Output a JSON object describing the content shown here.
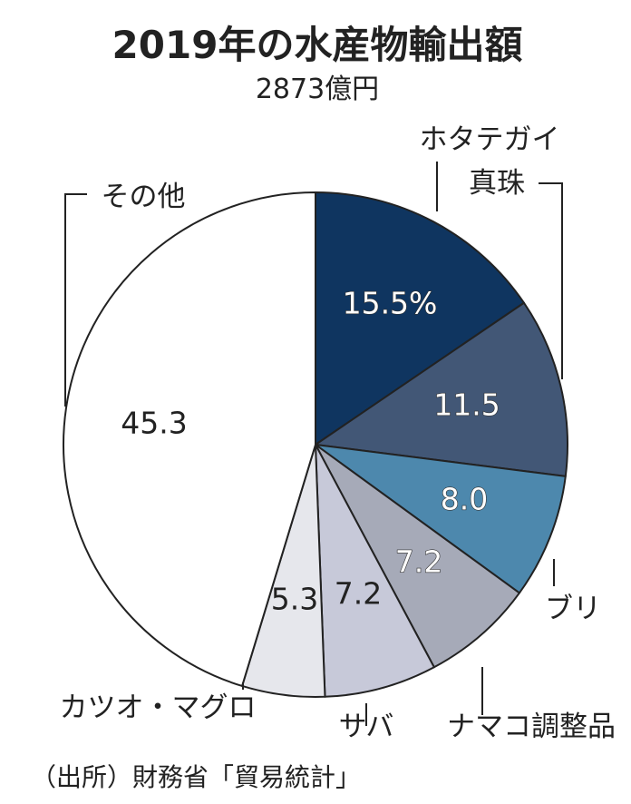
{
  "chart_data": {
    "type": "pie",
    "title": "2019年の水産物輸出額",
    "subtitle": "2873億円",
    "slices": [
      {
        "label": "ホタテガイ",
        "value": 15.5,
        "value_label": "15.5%",
        "color": "#0f3560",
        "text_color": "#ffffff"
      },
      {
        "label": "真珠",
        "value": 11.5,
        "value_label": "11.5",
        "color": "#425776",
        "text_color": "#ffffff"
      },
      {
        "label": "ブリ",
        "value": 8.0,
        "value_label": "8.0",
        "color": "#4d88ad",
        "text_color": "#ffffff"
      },
      {
        "label": "ナマコ調整品",
        "value": 7.2,
        "value_label": "7.2",
        "color": "#a6aab8",
        "text_color": "#ffffff"
      },
      {
        "label": "サバ",
        "value": 7.2,
        "value_label": "7.2",
        "color": "#c7c9d9",
        "text_color": "#222222"
      },
      {
        "label": "カツオ・マグロ",
        "value": 5.3,
        "value_label": "5.3",
        "color": "#e6e7ec",
        "text_color": "#222222"
      },
      {
        "label": "その他",
        "value": 45.3,
        "value_label": "45.3",
        "color": "#ffffff",
        "text_color": "#222222"
      }
    ]
  },
  "source": "（出所）財務省「貿易統計」"
}
